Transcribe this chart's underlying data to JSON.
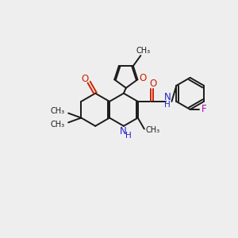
{
  "bg_color": "#eeeeee",
  "bond_color": "#1a1a1a",
  "N_color": "#2222cc",
  "O_color": "#cc2200",
  "F_color": "#bb00bb",
  "figsize": [
    3.0,
    3.0
  ],
  "dpi": 100,
  "xlim": [
    0,
    10
  ],
  "ylim": [
    0,
    10
  ]
}
